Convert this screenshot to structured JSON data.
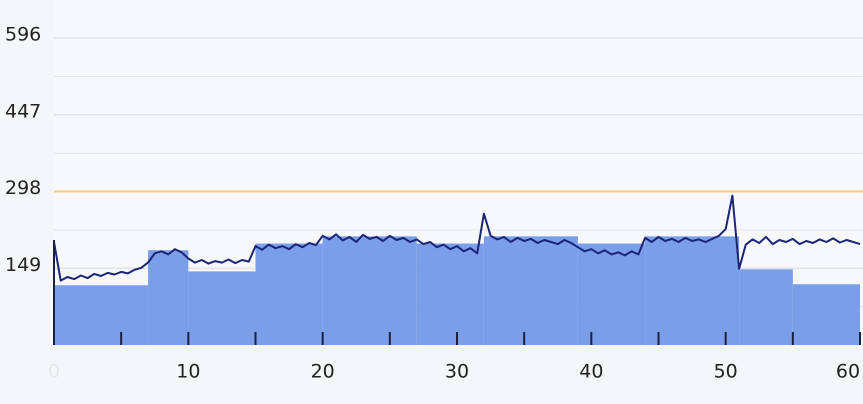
{
  "chart_data": {
    "type": "line",
    "xlim": [
      0,
      60
    ],
    "xticks": [
      0,
      10,
      20,
      30,
      40,
      50,
      60
    ],
    "minor_xticks": [
      5,
      15,
      25,
      35,
      45,
      55
    ],
    "ylim": [
      0,
      670
    ],
    "yticks": [
      149,
      298,
      447,
      596
    ],
    "minor_yticks": [
      74.5,
      223.5,
      372.5,
      521.5
    ],
    "grid": true,
    "threshold": {
      "value": 298,
      "color": "#f7c978"
    },
    "steps": {
      "color": "#7b9ee8",
      "edges": [
        0,
        7,
        10,
        15,
        20,
        27,
        32,
        39,
        44,
        51,
        55,
        60
      ],
      "values": [
        116,
        184,
        143,
        197,
        211,
        197,
        211,
        197,
        211,
        147,
        118
      ]
    },
    "series": [
      {
        "color": "#1b2574",
        "x": [
          0,
          0.5,
          1,
          1.5,
          2,
          2.5,
          3,
          3.5,
          4,
          4.5,
          5,
          5.5,
          6,
          6.5,
          7,
          7.5,
          8,
          8.5,
          9,
          9.5,
          10,
          10.5,
          11,
          11.5,
          12,
          12.5,
          13,
          13.5,
          14,
          14.5,
          15,
          15.5,
          16,
          16.5,
          17,
          17.5,
          18,
          18.5,
          19,
          19.5,
          20,
          20.5,
          21,
          21.5,
          22,
          22.5,
          23,
          23.5,
          24,
          24.5,
          25,
          25.5,
          26,
          26.5,
          27,
          27.5,
          28,
          28.5,
          29,
          29.5,
          30,
          30.5,
          31,
          31.5,
          32,
          32.5,
          33,
          33.5,
          34,
          34.5,
          35,
          35.5,
          36,
          36.5,
          37,
          37.5,
          38,
          38.5,
          39,
          39.5,
          40,
          40.5,
          41,
          41.5,
          42,
          42.5,
          43,
          43.5,
          44,
          44.5,
          45,
          45.5,
          46,
          46.5,
          47,
          47.5,
          48,
          48.5,
          49,
          49.5,
          50,
          50.5,
          51,
          51.5,
          52,
          52.5,
          53,
          53.5,
          54,
          54.5,
          55,
          55.5,
          56,
          56.5,
          57,
          57.5,
          58,
          58.5,
          59,
          59.5,
          60
        ],
        "values": [
          200,
          125,
          132,
          128,
          135,
          130,
          138,
          134,
          140,
          137,
          142,
          139,
          146,
          150,
          160,
          178,
          182,
          176,
          186,
          180,
          168,
          160,
          165,
          158,
          163,
          160,
          166,
          159,
          165,
          162,
          192,
          185,
          195,
          188,
          192,
          186,
          196,
          190,
          198,
          194,
          212,
          205,
          215,
          203,
          210,
          200,
          214,
          206,
          210,
          202,
          212,
          204,
          208,
          200,
          205,
          196,
          200,
          190,
          195,
          186,
          192,
          182,
          188,
          178,
          255,
          212,
          205,
          210,
          200,
          208,
          202,
          206,
          198,
          204,
          200,
          196,
          204,
          198,
          190,
          182,
          186,
          178,
          184,
          176,
          180,
          174,
          182,
          176,
          208,
          200,
          210,
          202,
          206,
          200,
          208,
          202,
          205,
          200,
          206,
          212,
          225,
          290,
          148,
          195,
          205,
          198,
          210,
          196,
          204,
          200,
          206,
          196,
          202,
          198,
          205,
          200,
          207,
          199,
          204,
          200,
          196
        ]
      }
    ]
  }
}
